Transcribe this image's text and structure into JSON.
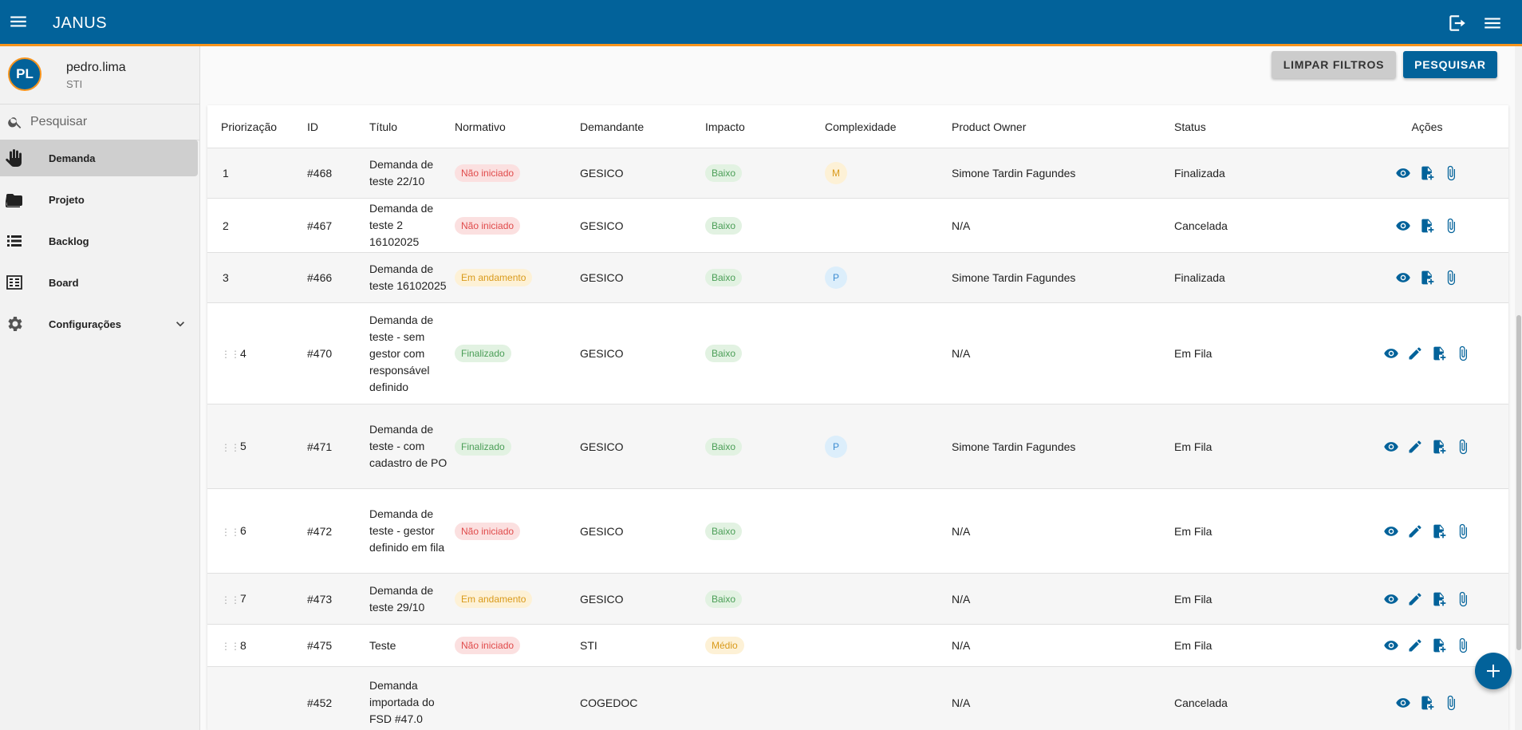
{
  "app": {
    "title": "JANUS"
  },
  "user": {
    "initials": "PL",
    "name": "pedro.lima",
    "dept": "STI"
  },
  "search": {
    "placeholder": "Pesquisar"
  },
  "nav": [
    {
      "label": "Demanda",
      "icon": "hand-icon",
      "active": true
    },
    {
      "label": "Projeto",
      "icon": "folder-icon"
    },
    {
      "label": "Backlog",
      "icon": "list-icon"
    },
    {
      "label": "Board",
      "icon": "board-icon"
    },
    {
      "label": "Configurações",
      "icon": "gear-icon"
    }
  ],
  "filters": {
    "clear_label": "LIMPAR FILTROS",
    "search_label": "PESQUISAR"
  },
  "table": {
    "headers": [
      "Priorização",
      "ID",
      "Título",
      "Normativo",
      "Demandante",
      "Impacto",
      "Complexidade",
      "Product Owner",
      "Status",
      "Ações"
    ],
    "rows": [
      {
        "prio": "1",
        "id": "#468",
        "title": "Demanda de teste 22/10",
        "normativo": "Não iniciado",
        "demandante": "GESICO",
        "impacto": "Baixo",
        "complexidade": "M",
        "po": "Simone Tardin Fagundes",
        "status": "Finalizada",
        "draggable": false,
        "editable": false
      },
      {
        "prio": "2",
        "id": "#467",
        "title": "Demanda de teste 2 16102025",
        "normativo": "Não iniciado",
        "demandante": "GESICO",
        "impacto": "Baixo",
        "complexidade": "",
        "po": "N/A",
        "status": "Cancelada",
        "draggable": false,
        "editable": false
      },
      {
        "prio": "3",
        "id": "#466",
        "title": "Demanda de teste 16102025",
        "normativo": "Em andamento",
        "demandante": "GESICO",
        "impacto": "Baixo",
        "complexidade": "P",
        "po": "Simone Tardin Fagundes",
        "status": "Finalizada",
        "draggable": false,
        "editable": false
      },
      {
        "prio": "4",
        "id": "#470",
        "title": "Demanda de teste - sem gestor com responsável definido",
        "normativo": "Finalizado",
        "demandante": "GESICO",
        "impacto": "Baixo",
        "complexidade": "",
        "po": "N/A",
        "status": "Em Fila",
        "draggable": true,
        "editable": true
      },
      {
        "prio": "5",
        "id": "#471",
        "title": "Demanda de teste - com cadastro de PO",
        "normativo": "Finalizado",
        "demandante": "GESICO",
        "impacto": "Baixo",
        "complexidade": "P",
        "po": "Simone Tardin Fagundes",
        "status": "Em Fila",
        "draggable": true,
        "editable": true
      },
      {
        "prio": "6",
        "id": "#472",
        "title": "Demanda de teste - gestor definido em fila",
        "normativo": "Não iniciado",
        "demandante": "GESICO",
        "impacto": "Baixo",
        "complexidade": "",
        "po": "N/A",
        "status": "Em Fila",
        "draggable": true,
        "editable": true
      },
      {
        "prio": "7",
        "id": "#473",
        "title": "Demanda de teste 29/10",
        "normativo": "Em andamento",
        "demandante": "GESICO",
        "impacto": "Baixo",
        "complexidade": "",
        "po": "N/A",
        "status": "Em Fila",
        "draggable": true,
        "editable": true
      },
      {
        "prio": "8",
        "id": "#475",
        "title": "Teste",
        "normativo": "Não iniciado",
        "demandante": "STI",
        "impacto": "Médio",
        "complexidade": "",
        "po": "N/A",
        "status": "Em Fila",
        "draggable": true,
        "editable": true
      },
      {
        "prio": "",
        "id": "#452",
        "title": "Demanda importada do FSD #47.0",
        "normativo": "",
        "demandante": "COGEDOC",
        "impacto": "",
        "complexidade": "",
        "po": "N/A",
        "status": "Cancelada",
        "draggable": false,
        "editable": false
      }
    ]
  },
  "colors": {
    "primary": "#02629a",
    "accent": "#f7941d"
  }
}
